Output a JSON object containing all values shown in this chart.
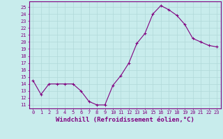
{
  "x": [
    0,
    1,
    2,
    3,
    4,
    5,
    6,
    7,
    8,
    9,
    10,
    11,
    12,
    13,
    14,
    15,
    16,
    17,
    18,
    19,
    20,
    21,
    22,
    23
  ],
  "y": [
    14.5,
    12.5,
    14.0,
    14.0,
    14.0,
    14.0,
    13.0,
    11.5,
    11.0,
    11.0,
    13.8,
    15.2,
    17.0,
    19.8,
    21.2,
    24.0,
    25.2,
    24.6,
    23.8,
    22.5,
    20.5,
    20.0,
    19.5,
    19.3
  ],
  "line_color": "#800080",
  "marker": "+",
  "bg_color": "#c8ecec",
  "grid_color": "#b0d8d8",
  "xlabel": "Windchill (Refroidissement éolien,°C)",
  "ylim": [
    10.5,
    25.8
  ],
  "xlim": [
    -0.5,
    23.5
  ],
  "yticks": [
    11,
    12,
    13,
    14,
    15,
    16,
    17,
    18,
    19,
    20,
    21,
    22,
    23,
    24,
    25
  ],
  "xticks": [
    0,
    1,
    2,
    3,
    4,
    5,
    6,
    7,
    8,
    9,
    10,
    11,
    12,
    13,
    14,
    15,
    16,
    17,
    18,
    19,
    20,
    21,
    22,
    23
  ],
  "tick_fontsize": 5.0,
  "xlabel_fontsize": 6.5,
  "axis_color": "#800080"
}
